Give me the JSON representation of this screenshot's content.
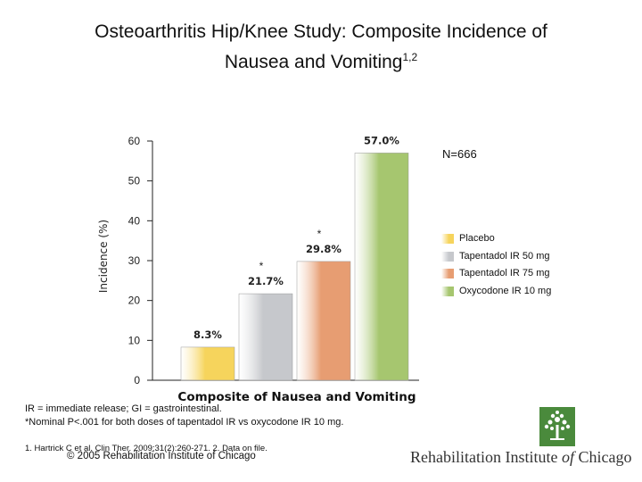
{
  "header": {
    "title_line1": "Osteoarthritis Hip/Knee Study: Composite Incidence of",
    "title_line2": "Nausea and Vomiting",
    "title_superscript": "1,2"
  },
  "sample_size": "N=666",
  "chart_data": {
    "type": "bar",
    "categories": [
      "Placebo",
      "Tapentadol IR 50 mg",
      "Tapentadol IR 75 mg",
      "Oxycodone IR 10 mg"
    ],
    "values": [
      8.3,
      21.7,
      29.8,
      57.0
    ],
    "data_labels": [
      "8.3%",
      "21.7%",
      "29.8%",
      "57.0%"
    ],
    "significance_markers": [
      "",
      "*",
      "*",
      ""
    ],
    "xlabel": "Composite of Nausea and Vomiting",
    "ylabel": "Incidence (%)",
    "ylim": [
      0,
      60
    ],
    "yticks": [
      0,
      10,
      20,
      30,
      40,
      50,
      60
    ],
    "colors": [
      "#f6d45c",
      "#c6c8cc",
      "#e79d72",
      "#a6c66f"
    ],
    "legend": [
      "Placebo",
      "Tapentadol IR 50 mg",
      "Tapentadol IR 75 mg",
      "Oxycodone IR 10 mg"
    ],
    "legend_position": "right",
    "grid": false
  },
  "footnotes": {
    "abbreviations": "IR = immediate release; GI = gastrointestinal.",
    "significance": "*Nominal P<.001 for both doses of tapentadol IR vs oxycodone IR 10 mg."
  },
  "references": "1. Hartrick C et al. Clin Ther. 2009;31(2):260-271. 2. Data on file.",
  "copyright": "© 2005 Rehabilitation Institute of Chicago",
  "logo": {
    "name_part1": "Rehabilitation Institute ",
    "name_part2": "of",
    "name_part3": " Chicago",
    "icon": "tree-icon"
  }
}
